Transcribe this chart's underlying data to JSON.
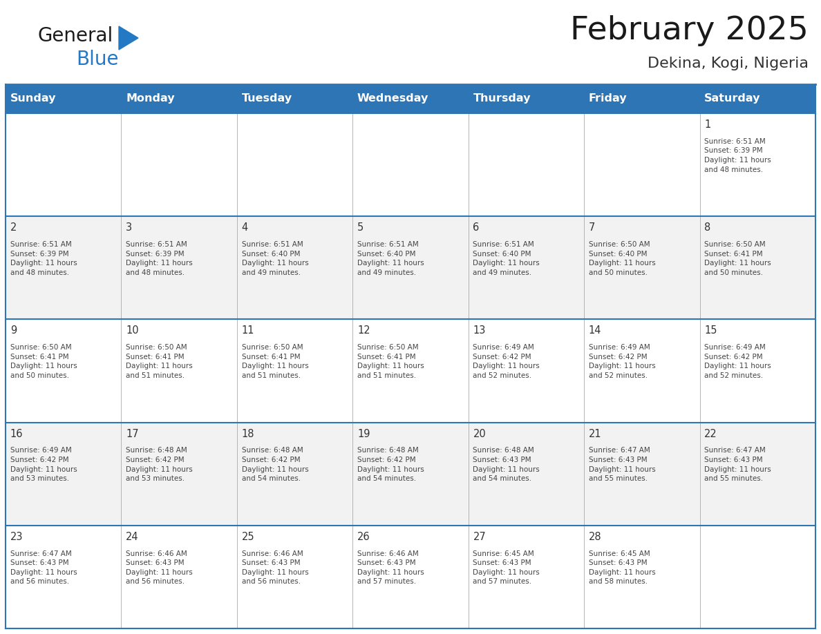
{
  "title": "February 2025",
  "subtitle": "Dekina, Kogi, Nigeria",
  "header_bg": "#2E75B6",
  "header_text_color": "#FFFFFF",
  "cell_bg_white": "#FFFFFF",
  "cell_bg_light": "#F2F2F2",
  "border_color": "#2E75B6",
  "cell_border_color": "#AAAAAA",
  "title_color": "#1a1a1a",
  "subtitle_color": "#333333",
  "day_number_color": "#333333",
  "info_text_color": "#444444",
  "day_headers": [
    "Sunday",
    "Monday",
    "Tuesday",
    "Wednesday",
    "Thursday",
    "Friday",
    "Saturday"
  ],
  "calendar_data": [
    [
      {
        "day": "",
        "info": ""
      },
      {
        "day": "",
        "info": ""
      },
      {
        "day": "",
        "info": ""
      },
      {
        "day": "",
        "info": ""
      },
      {
        "day": "",
        "info": ""
      },
      {
        "day": "",
        "info": ""
      },
      {
        "day": "1",
        "info": "Sunrise: 6:51 AM\nSunset: 6:39 PM\nDaylight: 11 hours\nand 48 minutes."
      }
    ],
    [
      {
        "day": "2",
        "info": "Sunrise: 6:51 AM\nSunset: 6:39 PM\nDaylight: 11 hours\nand 48 minutes."
      },
      {
        "day": "3",
        "info": "Sunrise: 6:51 AM\nSunset: 6:39 PM\nDaylight: 11 hours\nand 48 minutes."
      },
      {
        "day": "4",
        "info": "Sunrise: 6:51 AM\nSunset: 6:40 PM\nDaylight: 11 hours\nand 49 minutes."
      },
      {
        "day": "5",
        "info": "Sunrise: 6:51 AM\nSunset: 6:40 PM\nDaylight: 11 hours\nand 49 minutes."
      },
      {
        "day": "6",
        "info": "Sunrise: 6:51 AM\nSunset: 6:40 PM\nDaylight: 11 hours\nand 49 minutes."
      },
      {
        "day": "7",
        "info": "Sunrise: 6:50 AM\nSunset: 6:40 PM\nDaylight: 11 hours\nand 50 minutes."
      },
      {
        "day": "8",
        "info": "Sunrise: 6:50 AM\nSunset: 6:41 PM\nDaylight: 11 hours\nand 50 minutes."
      }
    ],
    [
      {
        "day": "9",
        "info": "Sunrise: 6:50 AM\nSunset: 6:41 PM\nDaylight: 11 hours\nand 50 minutes."
      },
      {
        "day": "10",
        "info": "Sunrise: 6:50 AM\nSunset: 6:41 PM\nDaylight: 11 hours\nand 51 minutes."
      },
      {
        "day": "11",
        "info": "Sunrise: 6:50 AM\nSunset: 6:41 PM\nDaylight: 11 hours\nand 51 minutes."
      },
      {
        "day": "12",
        "info": "Sunrise: 6:50 AM\nSunset: 6:41 PM\nDaylight: 11 hours\nand 51 minutes."
      },
      {
        "day": "13",
        "info": "Sunrise: 6:49 AM\nSunset: 6:42 PM\nDaylight: 11 hours\nand 52 minutes."
      },
      {
        "day": "14",
        "info": "Sunrise: 6:49 AM\nSunset: 6:42 PM\nDaylight: 11 hours\nand 52 minutes."
      },
      {
        "day": "15",
        "info": "Sunrise: 6:49 AM\nSunset: 6:42 PM\nDaylight: 11 hours\nand 52 minutes."
      }
    ],
    [
      {
        "day": "16",
        "info": "Sunrise: 6:49 AM\nSunset: 6:42 PM\nDaylight: 11 hours\nand 53 minutes."
      },
      {
        "day": "17",
        "info": "Sunrise: 6:48 AM\nSunset: 6:42 PM\nDaylight: 11 hours\nand 53 minutes."
      },
      {
        "day": "18",
        "info": "Sunrise: 6:48 AM\nSunset: 6:42 PM\nDaylight: 11 hours\nand 54 minutes."
      },
      {
        "day": "19",
        "info": "Sunrise: 6:48 AM\nSunset: 6:42 PM\nDaylight: 11 hours\nand 54 minutes."
      },
      {
        "day": "20",
        "info": "Sunrise: 6:48 AM\nSunset: 6:43 PM\nDaylight: 11 hours\nand 54 minutes."
      },
      {
        "day": "21",
        "info": "Sunrise: 6:47 AM\nSunset: 6:43 PM\nDaylight: 11 hours\nand 55 minutes."
      },
      {
        "day": "22",
        "info": "Sunrise: 6:47 AM\nSunset: 6:43 PM\nDaylight: 11 hours\nand 55 minutes."
      }
    ],
    [
      {
        "day": "23",
        "info": "Sunrise: 6:47 AM\nSunset: 6:43 PM\nDaylight: 11 hours\nand 56 minutes."
      },
      {
        "day": "24",
        "info": "Sunrise: 6:46 AM\nSunset: 6:43 PM\nDaylight: 11 hours\nand 56 minutes."
      },
      {
        "day": "25",
        "info": "Sunrise: 6:46 AM\nSunset: 6:43 PM\nDaylight: 11 hours\nand 56 minutes."
      },
      {
        "day": "26",
        "info": "Sunrise: 6:46 AM\nSunset: 6:43 PM\nDaylight: 11 hours\nand 57 minutes."
      },
      {
        "day": "27",
        "info": "Sunrise: 6:45 AM\nSunset: 6:43 PM\nDaylight: 11 hours\nand 57 minutes."
      },
      {
        "day": "28",
        "info": "Sunrise: 6:45 AM\nSunset: 6:43 PM\nDaylight: 11 hours\nand 58 minutes."
      },
      {
        "day": "",
        "info": ""
      }
    ]
  ],
  "logo_general_color": "#1a1a1a",
  "logo_blue_color": "#2479C4",
  "logo_triangle_color": "#2479C4",
  "fig_width": 11.88,
  "fig_height": 9.18,
  "dpi": 100
}
